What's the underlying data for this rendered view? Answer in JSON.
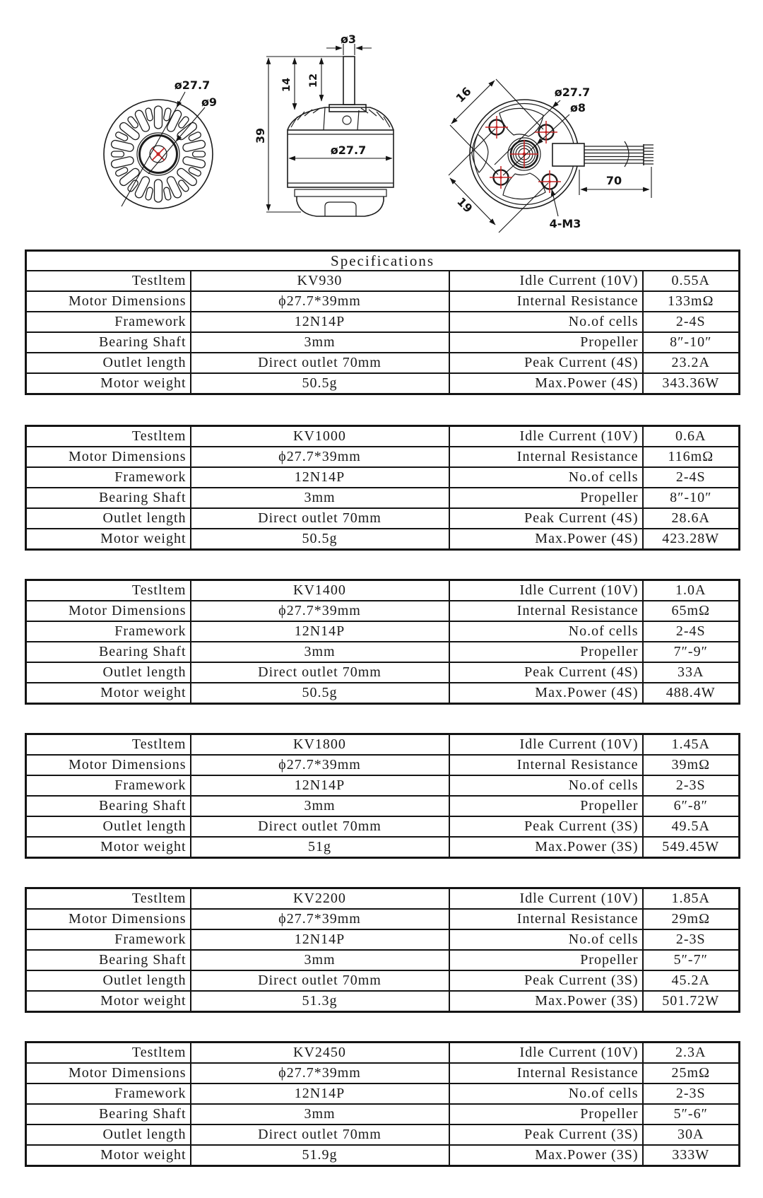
{
  "title": "Specifications",
  "drawings": {
    "front_view": {
      "outer_dia": "ø27.7",
      "inner_dia": "ø9"
    },
    "side_view": {
      "shaft_dia": "ø3",
      "dim_14": "14",
      "dim_12": "12",
      "total_height": "39",
      "body_dia": "ø27.7"
    },
    "rear_view": {
      "hole_pitch_16": "16",
      "hole_pitch_19": "19",
      "outer_dia": "ø27.7",
      "shaft_hole_dia": "ø8",
      "wire_length": "70",
      "mount_holes": "4-M3"
    }
  },
  "tables": [
    {
      "kv": "KV930",
      "rows": [
        [
          "Testltem",
          "KV930",
          "Idle Current (10V)",
          "0.55A"
        ],
        [
          "Motor Dimensions",
          "ϕ27.7*39mm",
          "Internal Resistance",
          "133mΩ"
        ],
        [
          "Framework",
          "12N14P",
          "No.of cells",
          "2-4S"
        ],
        [
          "Bearing Shaft",
          "3mm",
          "Propeller",
          "8″-10″"
        ],
        [
          "Outlet length",
          "Direct outlet 70mm",
          "Peak Current (4S)",
          "23.2A"
        ],
        [
          "Motor weight",
          "50.5g",
          "Max.Power (4S)",
          "343.36W"
        ]
      ]
    },
    {
      "kv": "KV1000",
      "rows": [
        [
          "Testltem",
          "KV1000",
          "Idle Current (10V)",
          "0.6A"
        ],
        [
          "Motor Dimensions",
          "ϕ27.7*39mm",
          "Internal Resistance",
          "116mΩ"
        ],
        [
          "Framework",
          "12N14P",
          "No.of cells",
          "2-4S"
        ],
        [
          "Bearing Shaft",
          "3mm",
          "Propeller",
          "8″-10″"
        ],
        [
          "Outlet length",
          "Direct outlet 70mm",
          "Peak Current (4S)",
          "28.6A"
        ],
        [
          "Motor weight",
          "50.5g",
          "Max.Power (4S)",
          "423.28W"
        ]
      ]
    },
    {
      "kv": "KV1400",
      "rows": [
        [
          "Testltem",
          "KV1400",
          "Idle Current (10V)",
          "1.0A"
        ],
        [
          "Motor Dimensions",
          "ϕ27.7*39mm",
          "Internal Resistance",
          "65mΩ"
        ],
        [
          "Framework",
          "12N14P",
          "No.of cells",
          "2-4S"
        ],
        [
          "Bearing Shaft",
          "3mm",
          "Propeller",
          "7″-9″"
        ],
        [
          "Outlet length",
          "Direct outlet 70mm",
          "Peak Current (4S)",
          "33A"
        ],
        [
          "Motor weight",
          "50.5g",
          "Max.Power (4S)",
          "488.4W"
        ]
      ]
    },
    {
      "kv": "KV1800",
      "rows": [
        [
          "Testltem",
          "KV1800",
          "Idle Current (10V)",
          "1.45A"
        ],
        [
          "Motor Dimensions",
          "ϕ27.7*39mm",
          "Internal Resistance",
          "39mΩ"
        ],
        [
          "Framework",
          "12N14P",
          "No.of cells",
          "2-3S"
        ],
        [
          "Bearing Shaft",
          "3mm",
          "Propeller",
          "6″-8″"
        ],
        [
          "Outlet length",
          "Direct outlet 70mm",
          "Peak Current (3S)",
          "49.5A"
        ],
        [
          "Motor weight",
          "51g",
          "Max.Power (3S)",
          "549.45W"
        ]
      ]
    },
    {
      "kv": "KV2200",
      "rows": [
        [
          "Testltem",
          "KV2200",
          "Idle Current (10V)",
          "1.85A"
        ],
        [
          "Motor Dimensions",
          "ϕ27.7*39mm",
          "Internal Resistance",
          "29mΩ"
        ],
        [
          "Framework",
          "12N14P",
          "No.of cells",
          "2-3S"
        ],
        [
          "Bearing Shaft",
          "3mm",
          "Propeller",
          "5″-7″"
        ],
        [
          "Outlet length",
          "Direct outlet 70mm",
          "Peak Current (3S)",
          "45.2A"
        ],
        [
          "Motor weight",
          "51.3g",
          "Max.Power (3S)",
          "501.72W"
        ]
      ]
    },
    {
      "kv": "KV2450",
      "rows": [
        [
          "Testltem",
          "KV2450",
          "Idle Current (10V)",
          "2.3A"
        ],
        [
          "Motor Dimensions",
          "ϕ27.7*39mm",
          "Internal Resistance",
          "25mΩ"
        ],
        [
          "Framework",
          "12N14P",
          "No.of cells",
          "2-3S"
        ],
        [
          "Bearing Shaft",
          "3mm",
          "Propeller",
          "5″-6″"
        ],
        [
          "Outlet length",
          "Direct outlet 70mm",
          "Peak Current (3S)",
          "30A"
        ],
        [
          "Motor weight",
          "51.9g",
          "Max.Power (3S)",
          "333W"
        ]
      ]
    }
  ]
}
